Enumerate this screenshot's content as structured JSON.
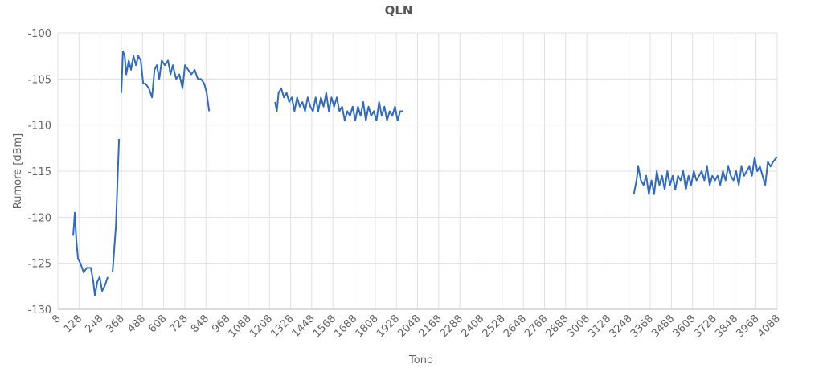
{
  "chart_data": {
    "type": "line",
    "title": "QLN",
    "x_label": "Tono",
    "y_label": "Rumore [dBm]",
    "xlim": [
      8,
      4088
    ],
    "xticks": [
      8,
      128,
      248,
      368,
      488,
      608,
      728,
      848,
      968,
      1088,
      1208,
      1328,
      1448,
      1568,
      1688,
      1808,
      1928,
      2048,
      2168,
      2288,
      2408,
      2528,
      2648,
      2768,
      2888,
      3008,
      3128,
      3248,
      3368,
      3488,
      3608,
      3728,
      3848,
      3968,
      4088
    ],
    "ylim": [
      -130,
      -100
    ],
    "yticks": [
      -130,
      -125,
      -120,
      -115,
      -110,
      -105,
      -100
    ],
    "grid": true,
    "series": [
      {
        "color": "#2f6bc4",
        "x": [
          95,
          104,
          113,
          122,
          136,
          154,
          172,
          195,
          209,
          218,
          232,
          245,
          259,
          273,
          291,
          300,
          318,
          337,
          355,
          362,
          368,
          377,
          387,
          396,
          410,
          423,
          437,
          451,
          464,
          478,
          492,
          505,
          524,
          542,
          556,
          569,
          583,
          597,
          615,
          633,
          647,
          660,
          679,
          697,
          715,
          729,
          747,
          765,
          784,
          802,
          820,
          838,
          852,
          866,
          900,
          1240,
          1250,
          1260,
          1275,
          1290,
          1305,
          1320,
          1335,
          1350,
          1365,
          1380,
          1395,
          1410,
          1425,
          1440,
          1455,
          1470,
          1485,
          1500,
          1515,
          1530,
          1545,
          1560,
          1575,
          1590,
          1605,
          1620,
          1635,
          1650,
          1665,
          1680,
          1695,
          1710,
          1725,
          1740,
          1755,
          1770,
          1785,
          1800,
          1815,
          1830,
          1845,
          1860,
          1875,
          1890,
          1905,
          1920,
          1935,
          1950,
          1965,
          2600,
          3275,
          3290,
          3300,
          3315,
          3330,
          3345,
          3360,
          3375,
          3390,
          3405,
          3420,
          3435,
          3450,
          3465,
          3480,
          3495,
          3510,
          3525,
          3540,
          3555,
          3570,
          3585,
          3600,
          3615,
          3630,
          3645,
          3660,
          3675,
          3690,
          3705,
          3720,
          3735,
          3750,
          3765,
          3780,
          3795,
          3810,
          3825,
          3840,
          3855,
          3870,
          3885,
          3900,
          3915,
          3930,
          3945,
          3960,
          3975,
          3990,
          4005,
          4020,
          4035,
          4050,
          4065,
          4085
        ],
        "values": [
          -122,
          -119.5,
          -122.5,
          -124.5,
          -125,
          -126,
          -125.5,
          -125.5,
          -127,
          -128.5,
          -127,
          -126.5,
          -128,
          -127.5,
          -126.5,
          null,
          -126,
          -121,
          -111.5,
          null,
          -106.5,
          -102,
          -102.5,
          -104.5,
          -103,
          -104,
          -102.5,
          -103.5,
          -102.5,
          -103,
          -105.5,
          -105.5,
          -106,
          -107,
          -104,
          -103.5,
          -105,
          -103,
          -103.5,
          -103,
          -104.5,
          -103.5,
          -105,
          -104.5,
          -106,
          -103.5,
          -104,
          -104.5,
          -104,
          -105,
          -105,
          -105.5,
          -106.5,
          -108.5,
          null,
          -107.5,
          -108.5,
          -106.5,
          -106,
          -107,
          -106.5,
          -107.5,
          -107,
          -108.5,
          -107,
          -108,
          -107.5,
          -108.5,
          -107,
          -108,
          -108.5,
          -107,
          -108.5,
          -107,
          -108,
          -106.5,
          -108.5,
          -107,
          -108,
          -107,
          -108.5,
          -108,
          -109.5,
          -108.5,
          -109,
          -108,
          -109.5,
          -108,
          -109,
          -107.5,
          -109.5,
          -108,
          -109,
          -108.5,
          -109.5,
          -107.5,
          -109,
          -108,
          -109.5,
          -108.5,
          -109,
          -108,
          -109.5,
          -108.5,
          -108.5,
          null,
          -117.5,
          -116,
          -114.5,
          -116,
          -116.5,
          -115.5,
          -117.5,
          -116,
          -117.5,
          -115,
          -116.5,
          -115.5,
          -117,
          -115,
          -116.5,
          -115.5,
          -117,
          -115.5,
          -116,
          -115,
          -117,
          -115.5,
          -116.5,
          -115,
          -116,
          -115.5,
          -115,
          -116,
          -114.5,
          -116.5,
          -115.5,
          -116,
          -115.5,
          -116.5,
          -115,
          -116,
          -114.5,
          -115.5,
          -116,
          -115,
          -116.5,
          -114.5,
          -115.5,
          -115,
          -114.5,
          -115.5,
          -113.5,
          -115,
          -114.5,
          -115.5,
          -116.5,
          -114,
          -114.5,
          -114,
          -113.5
        ]
      }
    ]
  }
}
